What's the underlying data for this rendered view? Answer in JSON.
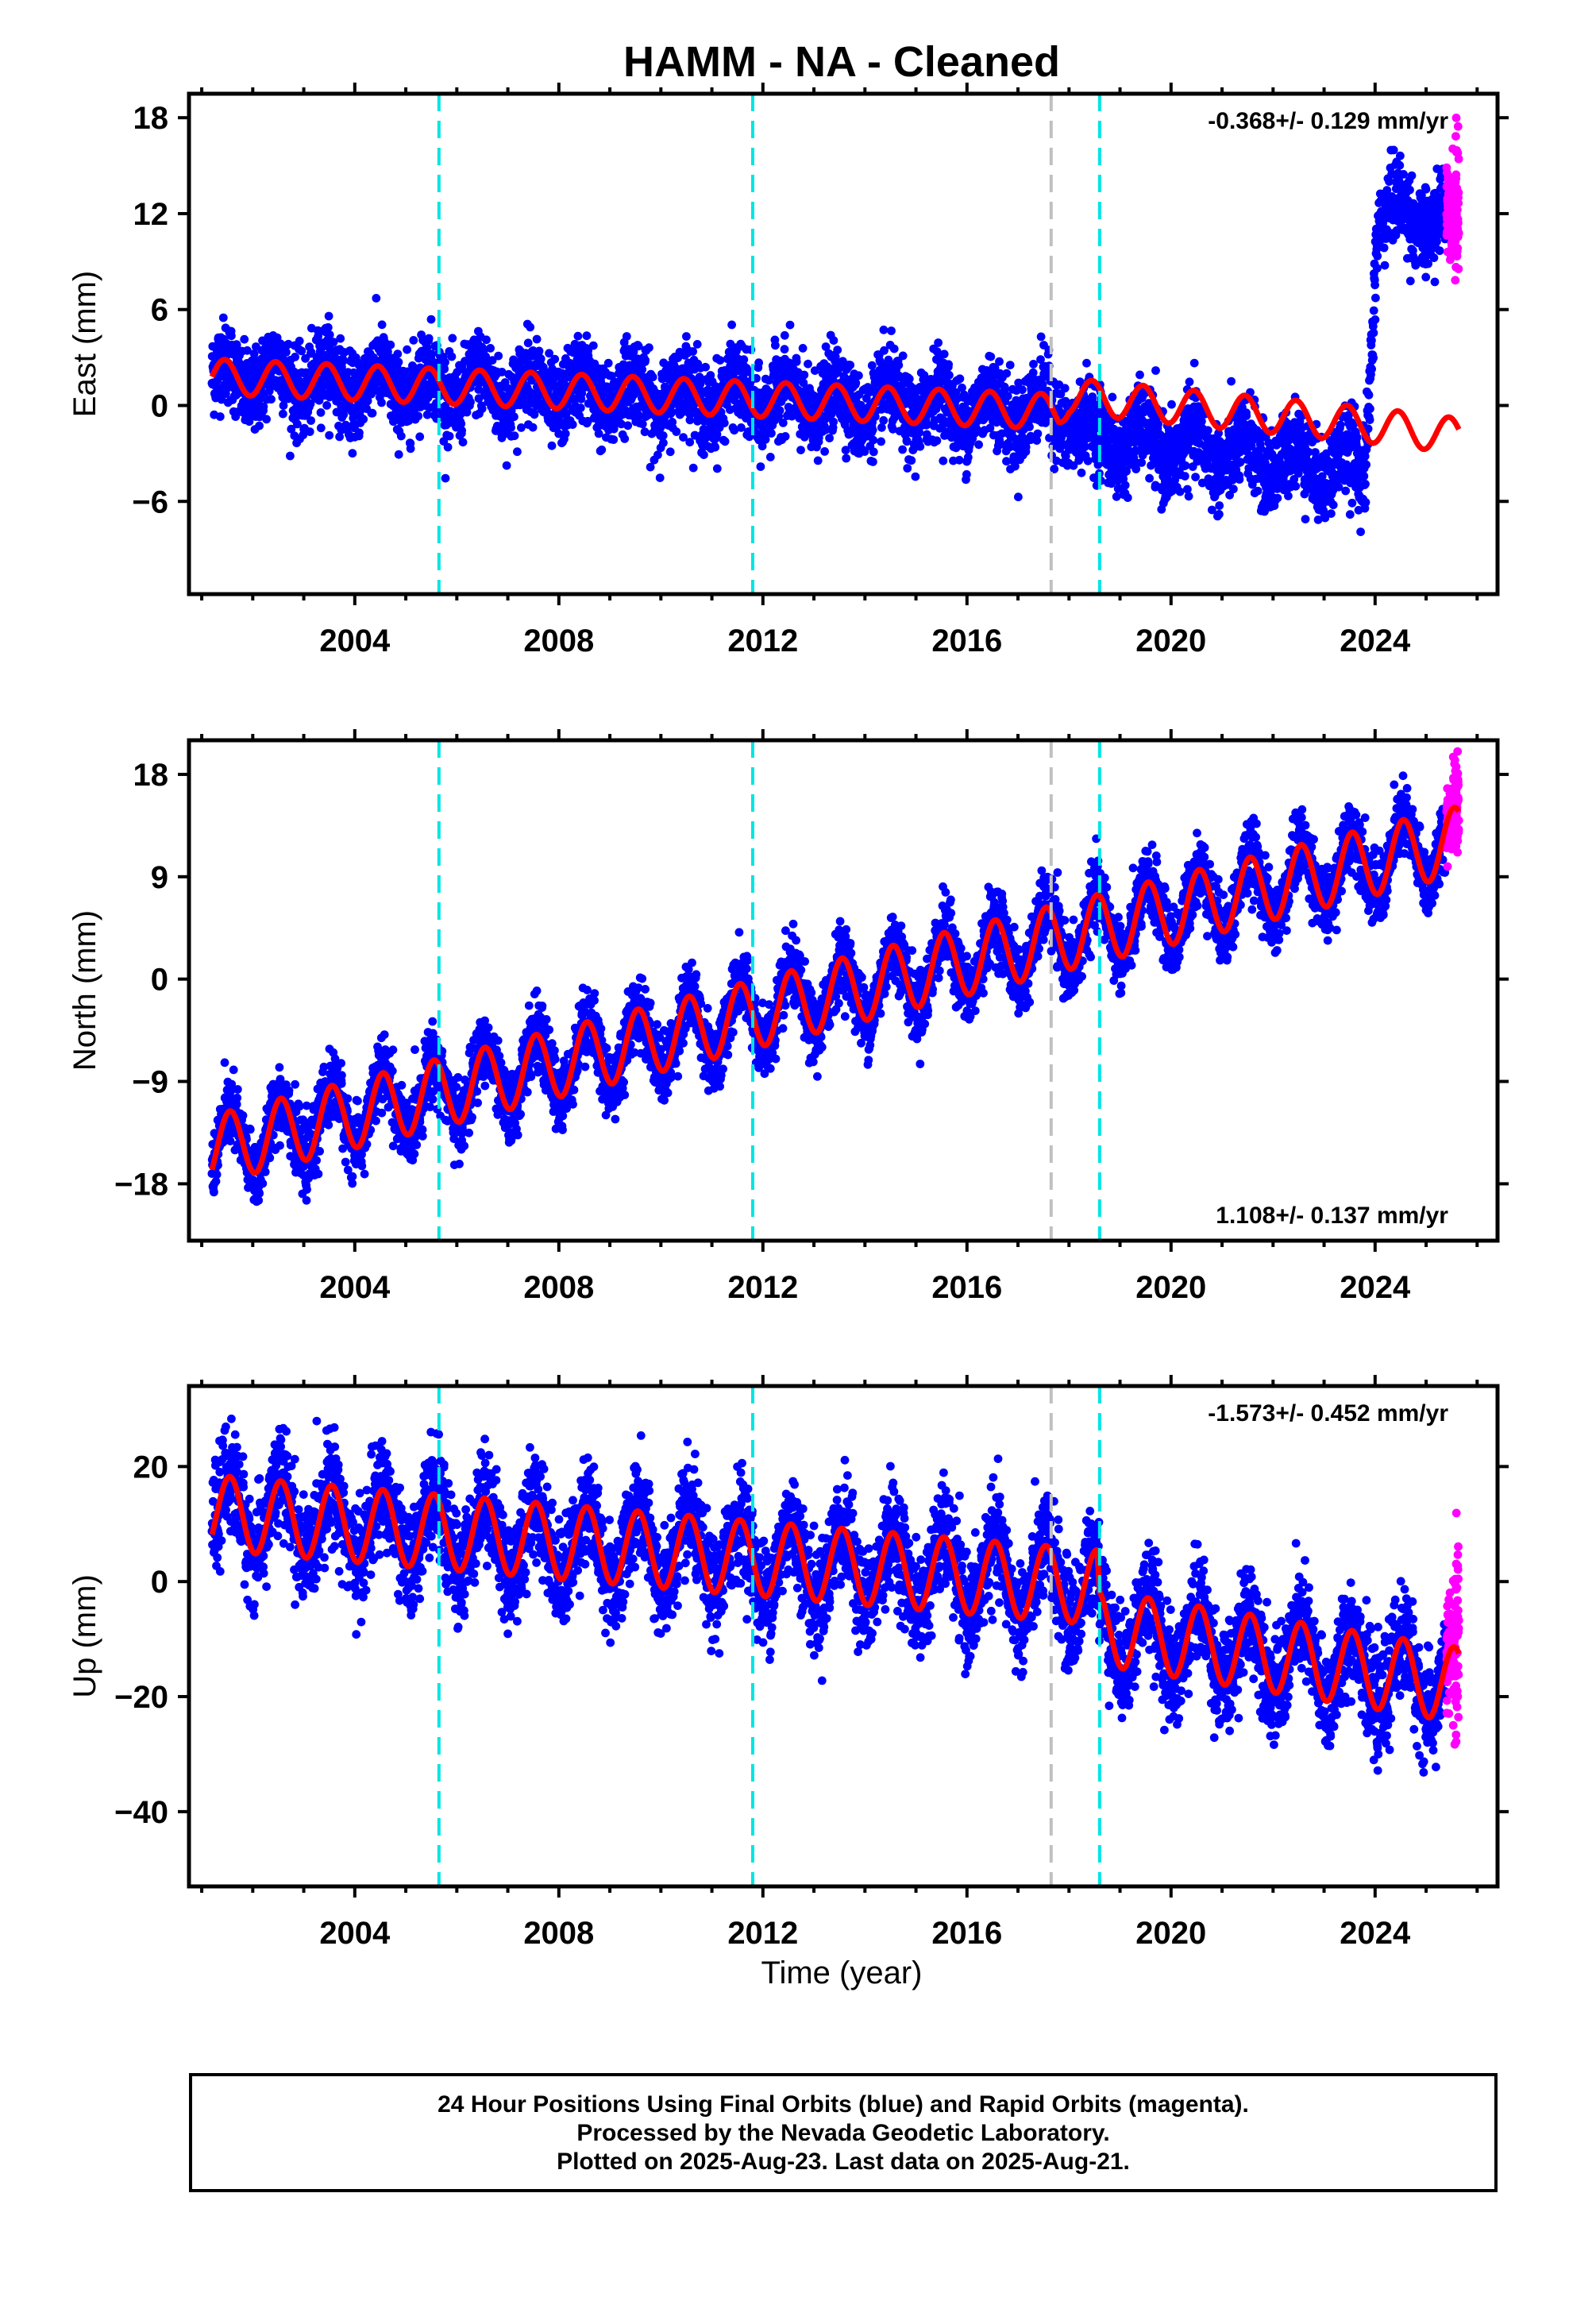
{
  "title": "HAMM  - NA - Cleaned",
  "x_label": "Time (year)",
  "caption": {
    "line1": "24 Hour Positions Using Final Orbits (blue) and Rapid Orbits (magenta).",
    "line2": "Processed by the Nevada Geodetic Laboratory.",
    "line3": "Plotted on 2025-Aug-23. Last data on 2025-Aug-21."
  },
  "colors": {
    "final": "#0000ff",
    "rapid": "#ff00ff",
    "model": "#ff0000",
    "equipment_change": "#00e5e5",
    "earthquake": "#c0c0c0"
  },
  "chart_data": [
    {
      "type": "scatter",
      "name": "east",
      "ylabel": "East (mm)",
      "rate_text": "-0.368+/- 0.129 mm/yr",
      "rate_position": "top-right",
      "xlim": [
        2000.75,
        2026.4
      ],
      "ylim": [
        -11.8,
        19.5
      ],
      "yticks": [
        -6,
        0,
        6,
        12,
        18
      ],
      "xticks": [
        2004,
        2008,
        2012,
        2016,
        2020,
        2024
      ],
      "grid": false,
      "data_start": 2001.2,
      "data_end": 2025.64,
      "model_end": 2025.64,
      "rapid_from": 2025.4,
      "trend_points": [
        [
          2001.2,
          1.8
        ],
        [
          2017.8,
          -0.4
        ],
        [
          2018.0,
          0.6
        ],
        [
          2023.8,
          -1.2
        ],
        [
          2025.64,
          -1.9
        ]
      ],
      "obs_points": [
        [
          2001.2,
          1.8
        ],
        [
          2017.8,
          -0.4
        ],
        [
          2018.5,
          -2.0
        ],
        [
          2023.8,
          -4.0
        ],
        [
          2024.05,
          12.0
        ],
        [
          2025.64,
          11.5
        ]
      ],
      "seasonal_amplitude": 1.1,
      "seasonal_peak": 0.45,
      "scatter_sd": 1.3,
      "rapid_sd": 2.2,
      "vlines_equipment": [
        2005.65,
        2011.8,
        2018.6
      ],
      "vlines_earthquake": [
        2017.65
      ]
    },
    {
      "type": "scatter",
      "name": "north",
      "ylabel": "North (mm)",
      "rate_text": "1.108+/- 0.137 mm/yr",
      "rate_position": "bottom-right",
      "xlim": [
        2000.75,
        2026.4
      ],
      "ylim": [
        -23,
        21
      ],
      "yticks": [
        -18,
        -9,
        0,
        9,
        18
      ],
      "xticks": [
        2004,
        2008,
        2012,
        2016,
        2020,
        2024
      ],
      "grid": false,
      "data_start": 2001.2,
      "data_end": 2025.64,
      "model_end": 2025.64,
      "rapid_from": 2025.4,
      "trend_points": [
        [
          2001.2,
          -15.0
        ],
        [
          2017.8,
          3.6
        ],
        [
          2025.64,
          12.2
        ]
      ],
      "obs_points": [
        [
          2001.2,
          -15.0
        ],
        [
          2017.8,
          3.6
        ],
        [
          2025.64,
          12.2
        ]
      ],
      "seasonal_amplitude": 3.0,
      "seasonal_peak": 0.55,
      "scatter_sd": 1.5,
      "rapid_sd": 1.6,
      "vlines_equipment": [
        2005.65,
        2011.8,
        2018.6
      ],
      "vlines_earthquake": [
        2017.65
      ]
    },
    {
      "type": "scatter",
      "name": "up",
      "ylabel": "Up (mm)",
      "rate_text": "-1.573+/- 0.452 mm/yr",
      "rate_position": "top-right",
      "xlim": [
        2000.75,
        2026.4
      ],
      "ylim": [
        -53,
        34
      ],
      "yticks": [
        -40,
        -20,
        0,
        20
      ],
      "xticks": [
        2004,
        2008,
        2012,
        2016,
        2020,
        2024
      ],
      "grid": false,
      "data_start": 2001.2,
      "data_end": 2025.64,
      "model_end": 2025.64,
      "rapid_from": 2025.4,
      "trend_points": [
        [
          2001.2,
          12.0
        ],
        [
          2018.55,
          -1.0
        ],
        [
          2018.6,
          -8.0
        ],
        [
          2025.64,
          -18.0
        ]
      ],
      "obs_points": [
        [
          2001.2,
          12.0
        ],
        [
          2018.55,
          -1.0
        ],
        [
          2018.6,
          -8.0
        ],
        [
          2025.64,
          -18.0
        ]
      ],
      "seasonal_amplitude": 6.5,
      "seasonal_peak": 0.55,
      "scatter_sd": 4.5,
      "rapid_sd": 10.0,
      "vlines_equipment": [
        2005.65,
        2011.8,
        2018.6
      ],
      "vlines_earthquake": [
        2017.65
      ]
    }
  ]
}
